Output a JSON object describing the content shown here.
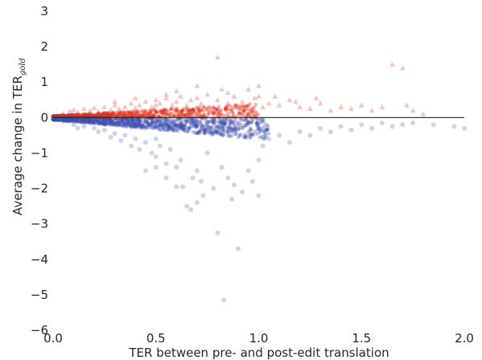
{
  "chart_data": {
    "type": "scatter",
    "title": "",
    "xlabel": "TER between pre- and post-edit translation",
    "ylabel": "Average change in TER",
    "ylabel_subscript": "gold",
    "xlim": [
      0.0,
      2.0
    ],
    "ylim": [
      -6,
      3
    ],
    "x_ticks": [
      0.0,
      0.5,
      1.0,
      1.5,
      2.0
    ],
    "x_tick_labels": [
      "0.0",
      "0.5",
      "1.0",
      "1.5",
      "2.0"
    ],
    "y_ticks": [
      3,
      2,
      1,
      0,
      -1,
      -2,
      -3,
      -4,
      -5,
      -6
    ],
    "y_tick_labels": [
      "3",
      "2",
      "1",
      "0",
      "−1",
      "−2",
      "−3",
      "−4",
      "−5",
      "−6"
    ],
    "grid": false,
    "legend": "none",
    "reference_line_y": 0,
    "series": [
      {
        "color": "#e0301e",
        "marker": "triangle",
        "points": [
          [
            0.05,
            0.12
          ],
          [
            0.08,
            0.18
          ],
          [
            0.1,
            0.22
          ],
          [
            0.12,
            0.15
          ],
          [
            0.15,
            0.25
          ],
          [
            0.18,
            0.2
          ],
          [
            0.2,
            0.28
          ],
          [
            0.22,
            0.18
          ],
          [
            0.25,
            0.3
          ],
          [
            0.28,
            0.22
          ],
          [
            0.3,
            0.35
          ],
          [
            0.32,
            0.25
          ],
          [
            0.35,
            0.3
          ],
          [
            0.38,
            0.4
          ],
          [
            0.4,
            0.28
          ],
          [
            0.42,
            0.35
          ],
          [
            0.45,
            0.45
          ],
          [
            0.48,
            0.3
          ],
          [
            0.5,
            0.5
          ],
          [
            0.5,
            0.35
          ],
          [
            0.52,
            0.4
          ],
          [
            0.55,
            0.55
          ],
          [
            0.58,
            0.35
          ],
          [
            0.6,
            0.45
          ],
          [
            0.62,
            0.6
          ],
          [
            0.65,
            0.35
          ],
          [
            0.67,
            0.5
          ],
          [
            0.7,
            0.55
          ],
          [
            0.72,
            0.4
          ],
          [
            0.75,
            0.65
          ],
          [
            0.78,
            0.3
          ],
          [
            0.8,
            1.7
          ],
          [
            0.8,
            0.5
          ],
          [
            0.82,
            0.8
          ],
          [
            0.85,
            0.4
          ],
          [
            0.88,
            0.6
          ],
          [
            0.9,
            0.3
          ],
          [
            0.92,
            0.45
          ],
          [
            0.95,
            0.35
          ],
          [
            0.98,
            0.55
          ],
          [
            1.0,
            0.9
          ],
          [
            1.0,
            0.6
          ],
          [
            1.02,
            0.3
          ],
          [
            1.05,
            0.4
          ],
          [
            1.1,
            0.35
          ],
          [
            1.15,
            0.5
          ],
          [
            1.2,
            0.3
          ],
          [
            1.25,
            0.25
          ],
          [
            1.3,
            0.4
          ],
          [
            1.35,
            0.2
          ],
          [
            1.4,
            0.3
          ],
          [
            1.45,
            0.25
          ],
          [
            1.5,
            0.35
          ],
          [
            1.55,
            0.2
          ],
          [
            1.6,
            0.3
          ],
          [
            1.65,
            1.5
          ],
          [
            1.7,
            1.4
          ],
          [
            1.72,
            0.35
          ],
          [
            1.75,
            0.2
          ],
          [
            1.8,
            0.1
          ],
          [
            0.6,
            0.75
          ],
          [
            0.7,
            0.9
          ],
          [
            0.85,
            0.7
          ],
          [
            0.95,
            0.8
          ],
          [
            1.08,
            0.6
          ],
          [
            1.18,
            0.45
          ],
          [
            1.28,
            0.55
          ],
          [
            0.3,
            0.45
          ],
          [
            0.4,
            0.55
          ],
          [
            0.55,
            0.65
          ]
        ]
      },
      {
        "color": "#3f4fb0",
        "marker": "circle",
        "points": [
          [
            0.05,
            -0.1
          ],
          [
            0.1,
            -0.2
          ],
          [
            0.15,
            -0.25
          ],
          [
            0.2,
            -0.3
          ],
          [
            0.25,
            -0.35
          ],
          [
            0.3,
            -0.45
          ],
          [
            0.35,
            -0.5
          ],
          [
            0.4,
            -0.6
          ],
          [
            0.42,
            -0.9
          ],
          [
            0.45,
            -0.7
          ],
          [
            0.48,
            -1.0
          ],
          [
            0.5,
            -1.1
          ],
          [
            0.5,
            -0.6
          ],
          [
            0.52,
            -0.8
          ],
          [
            0.55,
            -1.3
          ],
          [
            0.57,
            -0.9
          ],
          [
            0.6,
            -1.95
          ],
          [
            0.62,
            -1.2
          ],
          [
            0.63,
            -1.95
          ],
          [
            0.65,
            -2.5
          ],
          [
            0.67,
            -2.6
          ],
          [
            0.7,
            -2.4
          ],
          [
            0.7,
            -1.5
          ],
          [
            0.72,
            -1.8
          ],
          [
            0.75,
            -1.0
          ],
          [
            0.78,
            -2.0
          ],
          [
            0.8,
            -3.25
          ],
          [
            0.82,
            -1.4
          ],
          [
            0.83,
            -5.15
          ],
          [
            0.85,
            -1.7
          ],
          [
            0.87,
            -2.3
          ],
          [
            0.88,
            -1.9
          ],
          [
            0.9,
            -3.7
          ],
          [
            0.92,
            -2.1
          ],
          [
            0.95,
            -1.5
          ],
          [
            0.97,
            -1.8
          ],
          [
            1.0,
            -2.2
          ],
          [
            1.0,
            -1.2
          ],
          [
            1.02,
            -0.8
          ],
          [
            1.05,
            -0.6
          ],
          [
            1.1,
            -0.5
          ],
          [
            1.15,
            -0.7
          ],
          [
            1.2,
            -0.4
          ],
          [
            1.25,
            -0.5
          ],
          [
            1.3,
            -0.3
          ],
          [
            1.35,
            -0.4
          ],
          [
            1.4,
            -0.25
          ],
          [
            1.45,
            -0.35
          ],
          [
            1.5,
            -0.2
          ],
          [
            1.55,
            -0.3
          ],
          [
            1.6,
            -0.15
          ],
          [
            1.65,
            -0.25
          ],
          [
            1.7,
            -0.2
          ],
          [
            1.75,
            -0.15
          ],
          [
            1.85,
            -0.2
          ],
          [
            1.95,
            -0.25
          ],
          [
            2.0,
            -0.3
          ],
          [
            0.45,
            -1.5
          ],
          [
            0.55,
            -1.7
          ],
          [
            0.6,
            -1.4
          ],
          [
            0.68,
            -1.7
          ],
          [
            0.73,
            -2.2
          ],
          [
            0.5,
            -1.4
          ],
          [
            0.38,
            -0.8
          ],
          [
            0.33,
            -0.65
          ],
          [
            0.28,
            -0.55
          ],
          [
            0.22,
            -0.4
          ],
          [
            0.12,
            -0.3
          ]
        ]
      }
    ]
  }
}
